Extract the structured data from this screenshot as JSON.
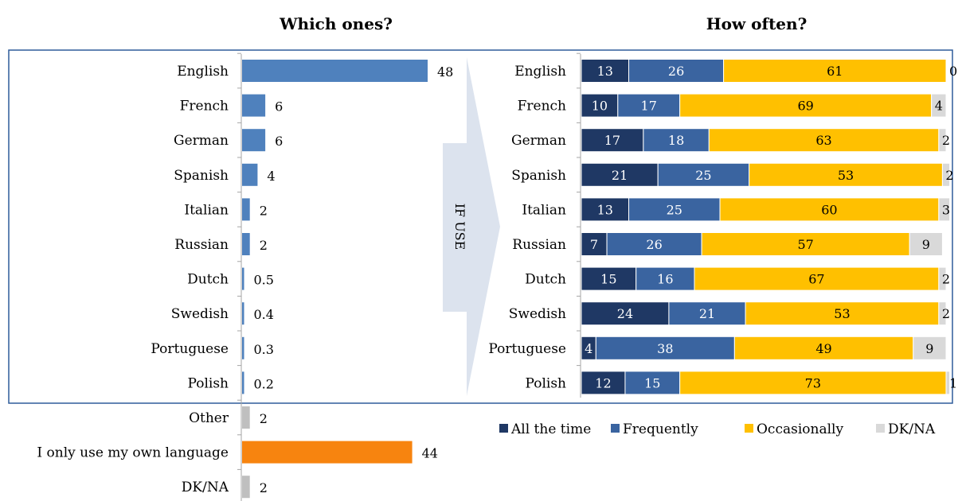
{
  "headers": {
    "left": "Which ones?",
    "right": "How often?"
  },
  "arrow_label": "IF USE",
  "colors": {
    "bar": "#4F81BD",
    "own_language": "#F7840F",
    "grey": "#BFBFBF",
    "box_border": "#2E5C9A",
    "arrow": "#DCE3EE"
  },
  "chart_data": [
    {
      "type": "bar",
      "orientation": "horizontal",
      "title": "Which ones?",
      "categories": [
        "English",
        "French",
        "German",
        "Spanish",
        "Italian",
        "Russian",
        "Dutch",
        "Swedish",
        "Portuguese",
        "Polish",
        "Other",
        "I only use my own language",
        "DK/NA"
      ],
      "values": [
        48,
        6,
        6,
        4,
        2,
        2,
        0.5,
        0.4,
        0.3,
        0.2,
        2,
        44,
        2
      ],
      "value_labels": [
        "48",
        "6",
        "6",
        "4",
        "2",
        "2",
        "0.5",
        "0.4",
        "0.3",
        "0.2",
        "2",
        "44",
        "2"
      ],
      "bar_colors": [
        "#4F81BD",
        "#4F81BD",
        "#4F81BD",
        "#4F81BD",
        "#4F81BD",
        "#4F81BD",
        "#4F81BD",
        "#4F81BD",
        "#4F81BD",
        "#4F81BD",
        "#BFBFBF",
        "#F7840F",
        "#BFBFBF"
      ]
    },
    {
      "type": "bar",
      "orientation": "horizontal",
      "stacked": true,
      "title": "How often?",
      "categories": [
        "English",
        "French",
        "German",
        "Spanish",
        "Italian",
        "Russian",
        "Dutch",
        "Swedish",
        "Portuguese",
        "Polish"
      ],
      "series": [
        {
          "name": "All the time",
          "color": "#1F3864",
          "label_color": "#FFFFFF",
          "values": [
            13,
            10,
            17,
            21,
            13,
            7,
            15,
            24,
            4,
            12
          ]
        },
        {
          "name": "Frequently",
          "color": "#3A64A0",
          "label_color": "#FFFFFF",
          "values": [
            26,
            17,
            18,
            25,
            25,
            26,
            16,
            21,
            38,
            15
          ]
        },
        {
          "name": "Occasionally",
          "color": "#FFC000",
          "label_color": "#000000",
          "values": [
            61,
            69,
            63,
            53,
            60,
            57,
            67,
            53,
            49,
            73
          ]
        },
        {
          "name": "DK/NA",
          "color": "#D9D9D9",
          "label_color": "#000000",
          "values": [
            0,
            4,
            2,
            2,
            3,
            9,
            2,
            2,
            9,
            1
          ]
        }
      ],
      "legend_position": "bottom"
    }
  ]
}
